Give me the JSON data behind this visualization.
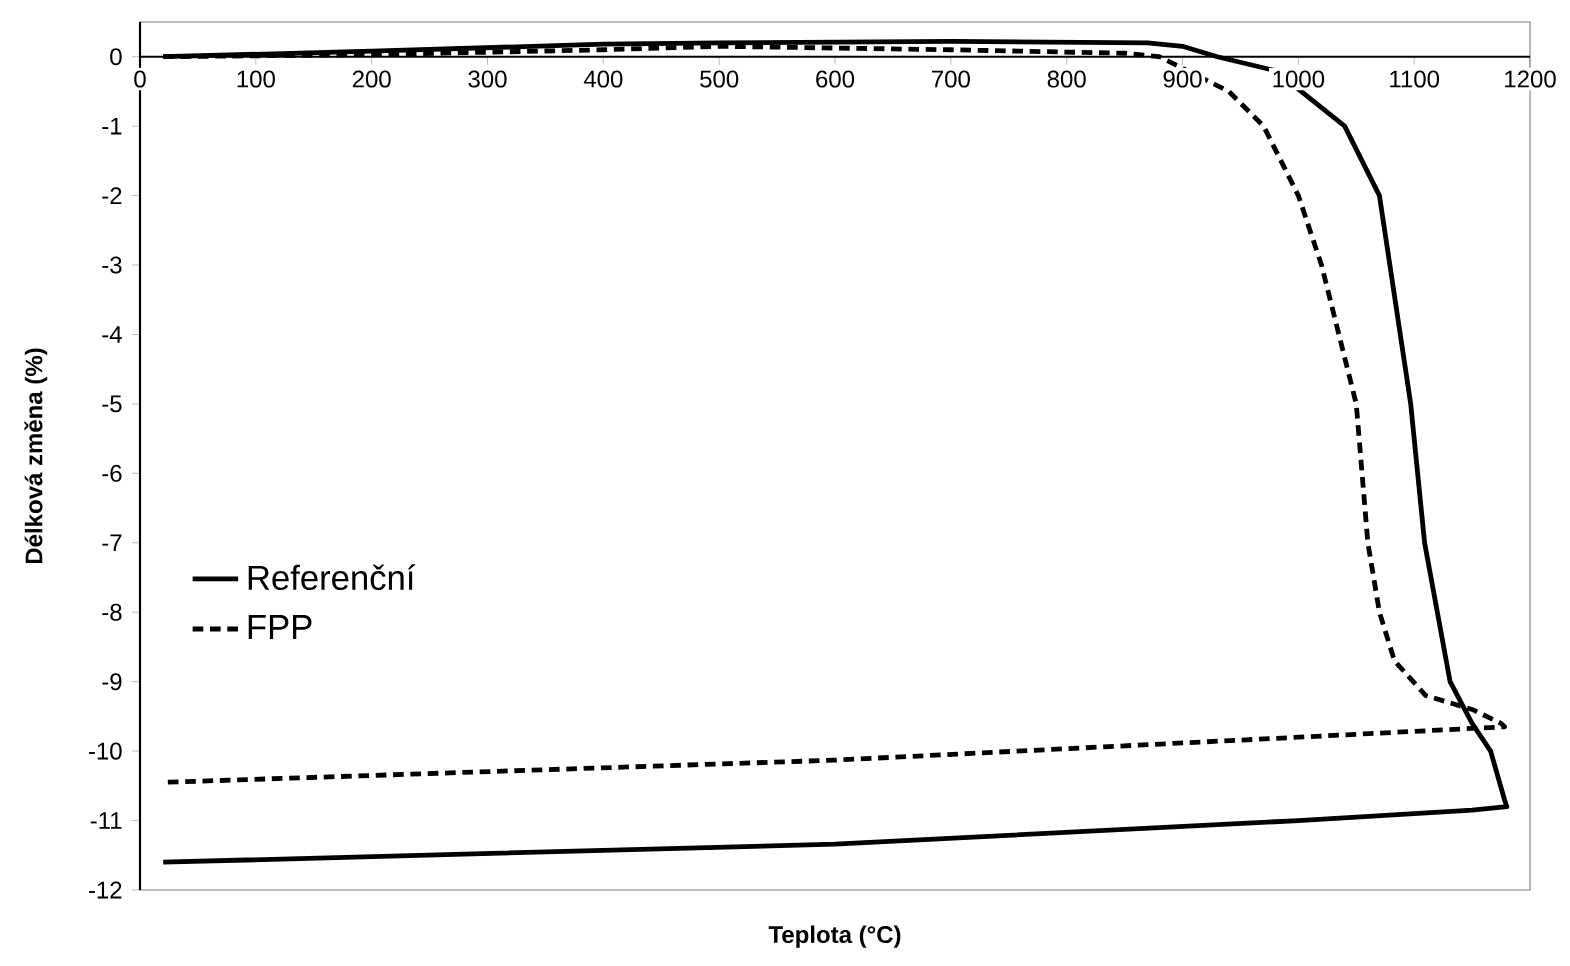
{
  "chart_data": {
    "type": "line",
    "xlabel": "Teplota (°C)",
    "ylabel": "Délková změna (%)",
    "xlim": [
      0,
      1200
    ],
    "ylim": [
      -12,
      0.5
    ],
    "xticks": [
      0,
      100,
      200,
      300,
      400,
      500,
      600,
      700,
      800,
      900,
      1000,
      1100,
      1200
    ],
    "yticks": [
      -12,
      -11,
      -10,
      -9,
      -8,
      -7,
      -6,
      -5,
      -4,
      -3,
      -2,
      -1,
      0
    ],
    "grid": false,
    "legend": "left",
    "marker": "none",
    "series": [
      {
        "name": "Referenční",
        "color": "#000000",
        "line_style": "solid",
        "x": [
          20,
          200,
          400,
          500,
          700,
          870,
          900,
          930,
          980,
          1040,
          1070,
          1097,
          1109,
          1131,
          1150,
          1166,
          1178,
          1180,
          1150,
          1000,
          600,
          20
        ],
        "values": [
          0,
          0.08,
          0.18,
          0.2,
          0.22,
          0.2,
          0.15,
          0,
          -0.2,
          -1,
          -2,
          -5,
          -7,
          -9,
          -9.6,
          -10,
          -10.7,
          -10.8,
          -10.85,
          -11.0,
          -11.34,
          -11.6
        ]
      },
      {
        "name": "FPP",
        "color": "#000000",
        "line_style": "dashed",
        "x": [
          20,
          200,
          400,
          500,
          700,
          850,
          880,
          940,
          970,
          1000,
          1020,
          1050,
          1060,
          1070,
          1083,
          1110,
          1150,
          1175,
          1178,
          1000,
          600,
          20
        ],
        "values": [
          0,
          0.03,
          0.1,
          0.15,
          0.1,
          0.05,
          0,
          -0.5,
          -1,
          -2,
          -3,
          -5,
          -7,
          -8,
          -8.7,
          -9.2,
          -9.4,
          -9.6,
          -9.65,
          -9.8,
          -10.13,
          -10.45
        ]
      }
    ]
  }
}
